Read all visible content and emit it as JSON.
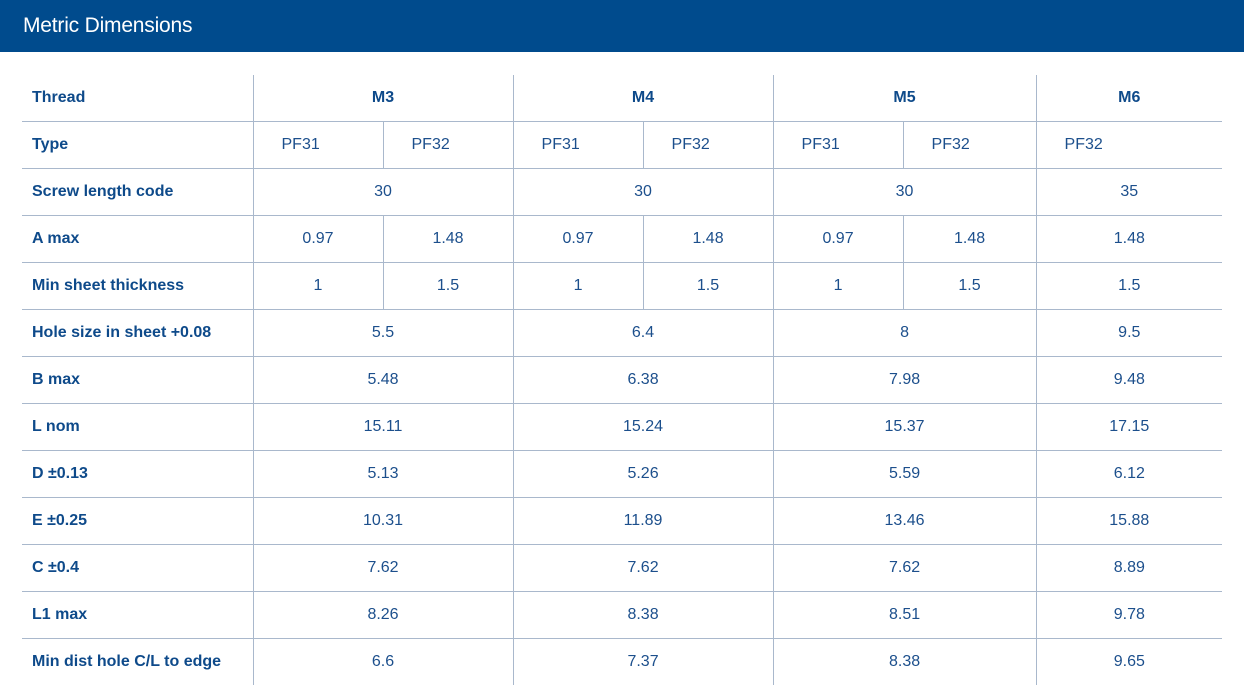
{
  "title": "Metric Dimensions",
  "threads": [
    "M3",
    "M4",
    "M5",
    "M6"
  ],
  "header_label": "Thread",
  "rows": [
    {
      "label": "Type",
      "kind": "split",
      "values": [
        "PF31",
        "PF32",
        "PF31",
        "PF32",
        "PF31",
        "PF32",
        "PF32"
      ]
    },
    {
      "label": "Screw length code",
      "kind": "merged",
      "values": [
        "30",
        "30",
        "30",
        "35"
      ]
    },
    {
      "label": "A max",
      "kind": "split",
      "values": [
        "0.97",
        "1.48",
        "0.97",
        "1.48",
        "0.97",
        "1.48",
        "1.48"
      ]
    },
    {
      "label": "Min sheet thickness",
      "kind": "split",
      "values": [
        "1",
        "1.5",
        "1",
        "1.5",
        "1",
        "1.5",
        "1.5"
      ]
    },
    {
      "label": "Hole size in sheet +0.08",
      "kind": "merged",
      "values": [
        "5.5",
        "6.4",
        "8",
        "9.5"
      ]
    },
    {
      "label": "B max",
      "kind": "merged",
      "values": [
        "5.48",
        "6.38",
        "7.98",
        "9.48"
      ]
    },
    {
      "label": "L nom",
      "kind": "merged",
      "values": [
        "15.11",
        "15.24",
        "15.37",
        "17.15"
      ]
    },
    {
      "label": "D ±0.13",
      "kind": "merged",
      "values": [
        "5.13",
        "5.26",
        "5.59",
        "6.12"
      ]
    },
    {
      "label": "E ±0.25",
      "kind": "merged",
      "values": [
        "10.31",
        "11.89",
        "13.46",
        "15.88"
      ]
    },
    {
      "label": "C ±0.4",
      "kind": "merged",
      "values": [
        "7.62",
        "7.62",
        "7.62",
        "8.89"
      ]
    },
    {
      "label": "L1 max",
      "kind": "merged",
      "values": [
        "8.26",
        "8.38",
        "8.51",
        "9.78"
      ]
    },
    {
      "label": "Min dist hole C/L to edge",
      "kind": "merged",
      "values": [
        "6.6",
        "7.37",
        "8.38",
        "9.65"
      ]
    }
  ]
}
